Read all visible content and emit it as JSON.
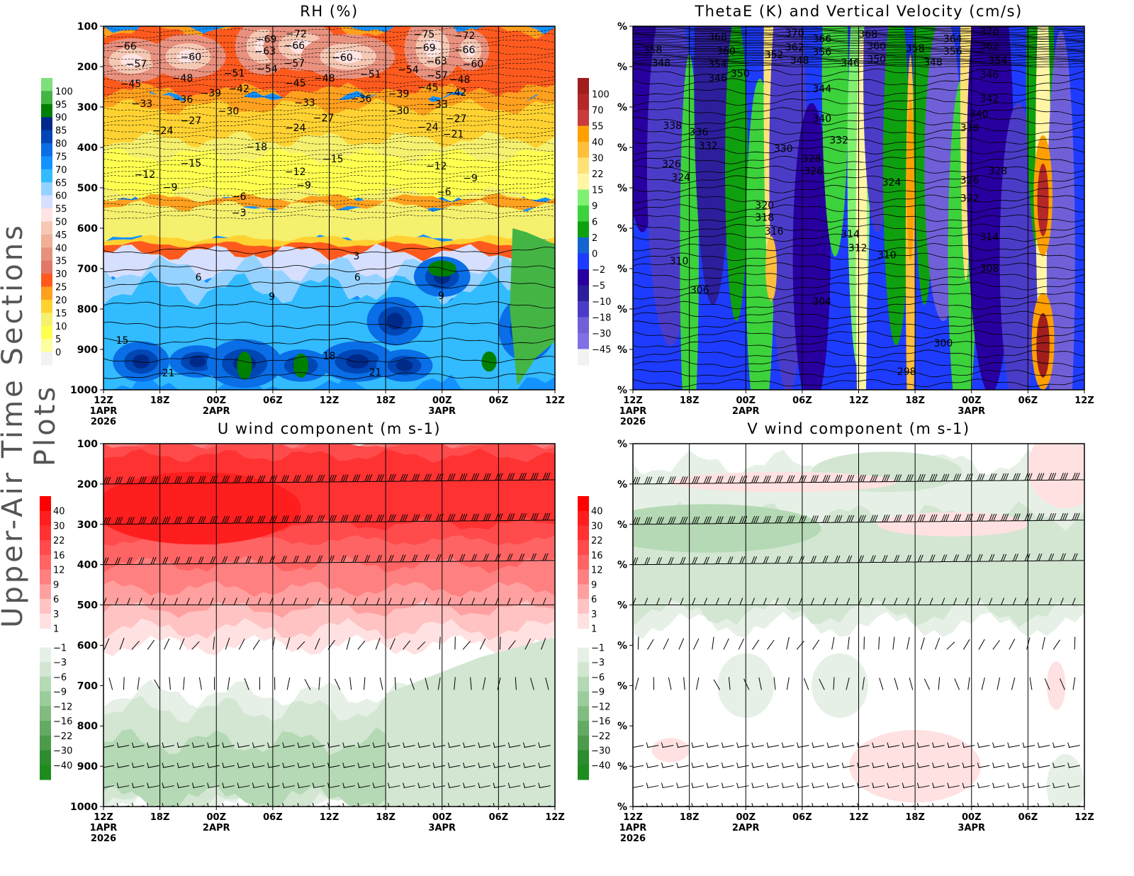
{
  "side_title": "Upper-Air Time Sections Plots",
  "time_ticks": [
    "12Z",
    "18Z",
    "00Z",
    "06Z",
    "12Z",
    "18Z",
    "00Z",
    "06Z",
    "12Z"
  ],
  "date_labels": [
    {
      "tick": 0,
      "lines": [
        "1APR",
        "2026"
      ]
    },
    {
      "tick": 2,
      "lines": [
        "2APR"
      ]
    },
    {
      "tick": 6,
      "lines": [
        "3APR"
      ]
    }
  ],
  "chart_data": [
    {
      "type": "heatmap",
      "title": "RH (%)",
      "ylabel": "",
      "y_ticks": [
        "100",
        "200",
        "300",
        "400",
        "500",
        "600",
        "700",
        "800",
        "900",
        "1000"
      ],
      "ylim": [
        1000,
        100
      ],
      "x_range_hours": [
        0,
        48
      ],
      "colorbar": {
        "labels": [
          "100",
          "95",
          "90",
          "85",
          "80",
          "75",
          "70",
          "65",
          "60",
          "55",
          "50",
          "45",
          "40",
          "35",
          "30",
          "25",
          "20",
          "15",
          "10",
          "5",
          "0"
        ],
        "colors": [
          "#7de07d",
          "#44b544",
          "#008000",
          "#002a8a",
          "#0046b4",
          "#0a6ee6",
          "#1492ff",
          "#32bbff",
          "#96d2ff",
          "#d7dfff",
          "#ffe4e4",
          "#f5c8b4",
          "#efb096",
          "#e8917f",
          "#e27868",
          "#ff5a1e",
          "#ffa01e",
          "#ffd232",
          "#f5f06e",
          "#ffff50",
          "#ffffa0",
          "#f2f2f2"
        ]
      },
      "contour_labels": [
        [
          -66,
          2.4,
          149
        ],
        [
          -57,
          3.5,
          193
        ],
        [
          -45,
          2.9,
          242
        ],
        [
          -33,
          4.1,
          291
        ],
        [
          -60,
          9.3,
          175
        ],
        [
          -48,
          8.4,
          228
        ],
        [
          -36,
          8.4,
          281
        ],
        [
          -27,
          9.3,
          333
        ],
        [
          -24,
          6.3,
          358
        ],
        [
          -12,
          4.4,
          467
        ],
        [
          -15,
          9.3,
          439
        ],
        [
          -9,
          7.1,
          498
        ],
        [
          -39,
          11.4,
          265
        ],
        [
          -51,
          13.9,
          216
        ],
        [
          -42,
          14.4,
          254
        ],
        [
          -30,
          13.3,
          310
        ],
        [
          -69,
          17.3,
          132
        ],
        [
          -63,
          17.2,
          161
        ],
        [
          -54,
          17.4,
          205
        ],
        [
          -72,
          20.5,
          118
        ],
        [
          -66,
          20.3,
          147
        ],
        [
          -57,
          20.3,
          191
        ],
        [
          -45,
          20.4,
          240
        ],
        [
          -33,
          21.4,
          289
        ],
        [
          -18,
          16.3,
          398
        ],
        [
          -24,
          20.4,
          351
        ],
        [
          -27,
          23.4,
          326
        ],
        [
          -6,
          14.4,
          521
        ],
        [
          -3,
          14.4,
          561
        ],
        [
          -12,
          20.4,
          460
        ],
        [
          -9,
          21.3,
          486
        ],
        [
          -15,
          24.4,
          428
        ],
        [
          -60,
          25.4,
          177
        ],
        [
          -48,
          23.5,
          228
        ],
        [
          -36,
          27.4,
          279
        ],
        [
          -51,
          28.4,
          218
        ],
        [
          -54,
          32.4,
          207
        ],
        [
          -39,
          31.4,
          267
        ],
        [
          -30,
          31.4,
          309
        ],
        [
          -24,
          34.5,
          349
        ],
        [
          -75,
          34.1,
          112
        ],
        [
          -69,
          34.2,
          139
        ],
        [
          -63,
          34.3,
          165
        ],
        [
          -57,
          35.5,
          193
        ],
        [
          -45,
          34.5,
          244
        ],
        [
          -33,
          35.5,
          293
        ],
        [
          -72,
          38.4,
          123
        ],
        [
          -66,
          38.4,
          151
        ],
        [
          -60,
          39.3,
          179
        ],
        [
          -48,
          37.5,
          232
        ],
        [
          -42,
          37.5,
          256
        ],
        [
          -27,
          37.5,
          328
        ],
        [
          -21,
          37.2,
          367
        ],
        [
          -12,
          35.4,
          446
        ],
        [
          -9,
          39.0,
          475
        ],
        [
          -6,
          36.2,
          510
        ],
        [
          3,
          26.9,
          668
        ],
        [
          6,
          10.1,
          721
        ],
        [
          6,
          27.0,
          721
        ],
        [
          9,
          17.9,
          768
        ],
        [
          9,
          35.9,
          767
        ],
        [
          15,
          2.0,
          877
        ],
        [
          18,
          24.0,
          916
        ],
        [
          21,
          6.9,
          958
        ],
        [
          21,
          28.9,
          956
        ]
      ]
    },
    {
      "type": "heatmap",
      "title": "ThetaE (K) and Vertical Velocity (cm/s)",
      "y_ticks": [
        "%",
        "%",
        "%",
        "%",
        "%",
        "%",
        "%",
        "%",
        "%",
        "%"
      ],
      "ylim": [
        1000,
        100
      ],
      "x_range_hours": [
        0,
        48
      ],
      "colorbar": {
        "labels": [
          "100",
          "70",
          "55",
          "40",
          "30",
          "22",
          "15",
          "9",
          "6",
          "2",
          "0",
          "-2",
          "-5",
          "-10",
          "-18",
          "-30",
          "-45"
        ],
        "colors": [
          "#a01e1e",
          "#b42828",
          "#c83c3c",
          "#ffa000",
          "#ffbe3c",
          "#ffe178",
          "#fff5a5",
          "#80f070",
          "#3cd23c",
          "#0fa00f",
          "#1464d2",
          "#1e3cff",
          "#2800a0",
          "#2d1e9b",
          "#4b3cc8",
          "#7060d8",
          "#8070e6",
          "#f2f2f2"
        ]
      },
      "contour_labels": [
        [
          358,
          2.1,
          158
        ],
        [
          348,
          3.0,
          190
        ],
        [
          368,
          9.0,
          126
        ],
        [
          360,
          9.9,
          154
        ],
        [
          354,
          9.0,
          172
        ],
        [
          346,
          9.0,
          200
        ],
        [
          350,
          9.9,
          189
        ],
        [
          370,
          17.2,
          117
        ],
        [
          362,
          17.2,
          145
        ],
        [
          366,
          20.1,
          131
        ],
        [
          356,
          20.1,
          163
        ],
        [
          352,
          15.0,
          170
        ],
        [
          348,
          18.1,
          184
        ],
        [
          346,
          23.1,
          190
        ],
        [
          368,
          25.0,
          119
        ],
        [
          360,
          25.9,
          149
        ],
        [
          350,
          25.9,
          182
        ],
        [
          358,
          30.0,
          154
        ],
        [
          348,
          31.9,
          189
        ],
        [
          364,
          34.0,
          131
        ],
        [
          356,
          34.0,
          161
        ],
        [
          370,
          37.9,
          114
        ],
        [
          362,
          37.9,
          142
        ],
        [
          354,
          38.8,
          170
        ],
        [
          346,
          37.9,
          198
        ],
        [
          344,
          20.1,
          254
        ],
        [
          342,
          37.9,
          279
        ],
        [
          340,
          20.1,
          328
        ],
        [
          340,
          36.8,
          317
        ],
        [
          338,
          35.8,
          344
        ],
        [
          338,
          4.2,
          346
        ],
        [
          336,
          7.0,
          361
        ],
        [
          332,
          8.0,
          396
        ],
        [
          332,
          21.9,
          382
        ],
        [
          330,
          16.0,
          403
        ],
        [
          328,
          19.0,
          427
        ],
        [
          326,
          19.2,
          451
        ],
        [
          326,
          4.1,
          440
        ],
        [
          324,
          5.1,
          467
        ],
        [
          324,
          27.5,
          486
        ],
        [
          328,
          38.8,
          458
        ],
        [
          326,
          35.8,
          481
        ],
        [
          322,
          35.8,
          525
        ],
        [
          320,
          14.0,
          543
        ],
        [
          318,
          14.0,
          573
        ],
        [
          316,
          15.0,
          600
        ],
        [
          314,
          23.1,
          614
        ],
        [
          312,
          23.9,
          641
        ],
        [
          310,
          27.0,
          666
        ],
        [
          314,
          37.9,
          621
        ],
        [
          310,
          4.9,
          681
        ],
        [
          308,
          37.9,
          699
        ],
        [
          306,
          7.1,
          753
        ],
        [
          304,
          20.1,
          781
        ],
        [
          300,
          33.0,
          884
        ],
        [
          298,
          29.1,
          954
        ]
      ]
    },
    {
      "type": "heatmap",
      "title": "U wind component (m s-1)",
      "y_ticks": [
        "100",
        "200",
        "300",
        "400",
        "500",
        "600",
        "700",
        "800",
        "900",
        "1000"
      ],
      "ylim": [
        1000,
        100
      ],
      "x_range_hours": [
        0,
        48
      ],
      "barb_levels": [
        200,
        300,
        400,
        500,
        600,
        700,
        850,
        900,
        950,
        1000
      ],
      "colorbar": {
        "labels": [
          "40",
          "30",
          "22",
          "16",
          "12",
          "9",
          "6",
          "3",
          "1",
          "-1",
          "-3",
          "-6",
          "-9",
          "-12",
          "-16",
          "-22",
          "-30",
          "-40"
        ],
        "pos_colors": [
          "#ff0000",
          "#ff1e1e",
          "#ff3232",
          "#ff4b4b",
          "#ff6464",
          "#ff8080",
          "#ffa0a0",
          "#ffc3c3",
          "#ffe1e1"
        ],
        "neg_colors": [
          "#e6f0e6",
          "#d2e6d2",
          "#b4d9b4",
          "#9bcc9b",
          "#80bb80",
          "#64aa64",
          "#4b9b4b",
          "#2d8c2d",
          "#1e8c1e"
        ]
      }
    },
    {
      "type": "heatmap",
      "title": "V wind component (m s-1)",
      "y_ticks": [
        "%",
        "%",
        "%",
        "%",
        "%",
        "%",
        "%",
        "%",
        "%",
        "%"
      ],
      "ylim": [
        1000,
        100
      ],
      "x_range_hours": [
        0,
        48
      ],
      "barb_levels": [
        200,
        300,
        400,
        500,
        600,
        700,
        850,
        900,
        950,
        1000
      ],
      "colorbar": {
        "labels": [
          "40",
          "30",
          "22",
          "16",
          "12",
          "9",
          "6",
          "3",
          "1",
          "-1",
          "-3",
          "-6",
          "-9",
          "-12",
          "-16",
          "-22",
          "-30",
          "-40"
        ],
        "pos_colors": [
          "#ff0000",
          "#ff1e1e",
          "#ff3232",
          "#ff4b4b",
          "#ff6464",
          "#ff8080",
          "#ffa0a0",
          "#ffc3c3",
          "#ffe1e1"
        ],
        "neg_colors": [
          "#e6f0e6",
          "#d2e6d2",
          "#b4d9b4",
          "#9bcc9b",
          "#80bb80",
          "#64aa64",
          "#4b9b4b",
          "#2d8c2d",
          "#1e8c1e"
        ]
      }
    }
  ]
}
